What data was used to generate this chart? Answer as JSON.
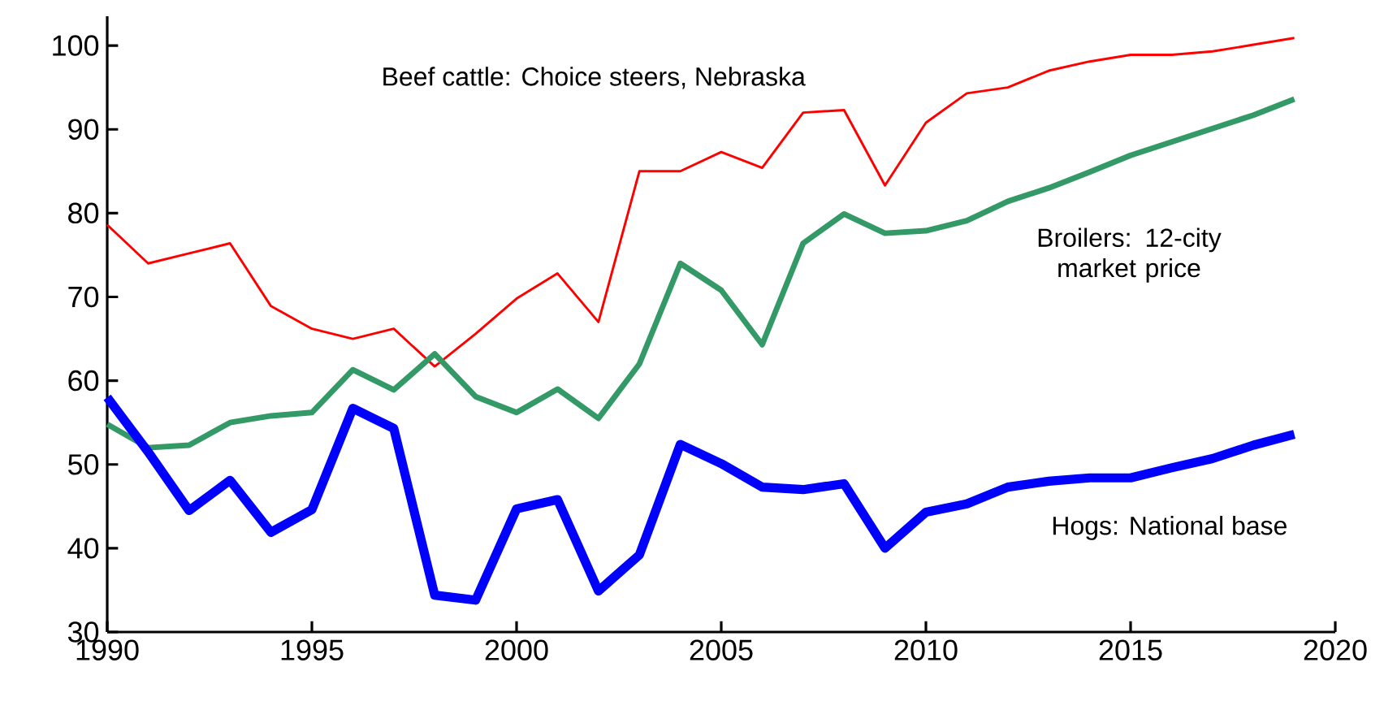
{
  "chart_data": {
    "type": "line",
    "x": [
      1990,
      1991,
      1992,
      1993,
      1994,
      1995,
      1996,
      1997,
      1998,
      1999,
      2000,
      2001,
      2002,
      2003,
      2004,
      2005,
      2006,
      2007,
      2008,
      2009,
      2010,
      2011,
      2012,
      2013,
      2014,
      2015,
      2016,
      2017,
      2018,
      2019
    ],
    "series": [
      {
        "name": "Beef cattle: Choice steers, Nebraska",
        "color": "#ff0000",
        "values": [
          78.6,
          74,
          75.2,
          76.4,
          68.9,
          66.2,
          65,
          66.2,
          61.7,
          65.6,
          69.8,
          72.8,
          67,
          85,
          85,
          87.3,
          85.4,
          92,
          92.3,
          83.3,
          90.8,
          94.3,
          95,
          97,
          98.1,
          98.9,
          98.9,
          99.3,
          100.1,
          100.9
        ]
      },
      {
        "name": "Broilers: 12-city market price",
        "color": "#339966",
        "values": [
          54.8,
          52,
          52.3,
          55,
          55.8,
          56.2,
          61.3,
          58.9,
          63.2,
          58.1,
          56.2,
          59,
          55.5,
          62,
          74,
          70.8,
          64.3,
          76.4,
          79.9,
          77.6,
          77.9,
          79.1,
          81.4,
          83,
          84.9,
          86.9,
          88.5,
          90.1,
          91.7,
          93.6
        ]
      },
      {
        "name": "Hogs: National base",
        "color": "#0000ff",
        "values": [
          58,
          51.5,
          44.5,
          48.1,
          41.9,
          44.6,
          56.7,
          54.3,
          34.4,
          33.8,
          44.7,
          45.8,
          34.9,
          39.2,
          52.4,
          50.1,
          47.3,
          47,
          47.7,
          40,
          44.3,
          45.3,
          47.3,
          48,
          48.4,
          48.4,
          49.6,
          50.7,
          52.3,
          53.6
        ]
      }
    ],
    "xlim": [
      1990,
      2020
    ],
    "xticks": [
      1990,
      1995,
      2000,
      2005,
      2010,
      2015,
      2020
    ],
    "ylim": [
      30,
      103.5
    ],
    "yticks": [
      30,
      40,
      50,
      60,
      70,
      80,
      90,
      100
    ],
    "grid": false,
    "legend": false,
    "marker": "none",
    "line_style": "solid"
  }
}
